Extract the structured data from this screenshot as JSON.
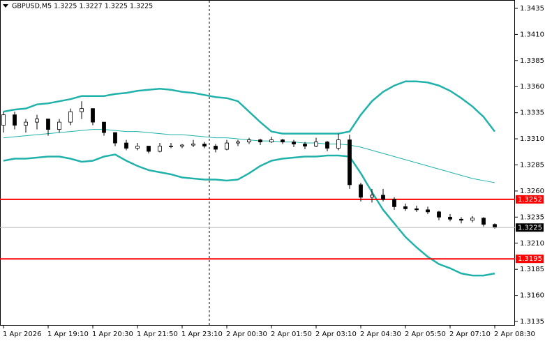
{
  "chart_data": {
    "type": "candlestick",
    "title": "GBPUSD,M5  1.3225 1.3227 1.3225 1.3225",
    "categories": [
      "1 Apr 2026",
      null,
      null,
      null,
      "1 Apr 19:10",
      null,
      null,
      null,
      "1 Apr 20:30",
      null,
      null,
      null,
      "1 Apr 21:50",
      null,
      null,
      null,
      "1 Apr 23:10",
      null,
      null,
      null,
      "2 Apr 00:30",
      null,
      null,
      null,
      "2 Apr 01:50",
      null,
      null,
      null,
      "2 Apr 03:10",
      null,
      null,
      null,
      "2 Apr 04:30",
      null,
      null,
      null,
      "2 Apr 05:50",
      null,
      null,
      null,
      "2 Apr 07:10",
      null,
      null,
      null,
      "2 Apr 08:30"
    ],
    "candles": {
      "open": [
        1.3323,
        1.3333,
        1.3323,
        1.3326,
        1.3329,
        1.3319,
        1.3326,
        1.3336,
        1.3339,
        1.3326,
        1.3316,
        1.3306,
        1.3301,
        1.3303,
        1.3298,
        1.3303,
        1.3303,
        1.3304,
        1.3305,
        1.3303,
        1.33,
        1.3306,
        1.3307,
        1.3309,
        1.3307,
        1.3309,
        1.3307,
        1.3305,
        1.3303,
        1.3307,
        1.3301,
        1.3309,
        1.3266,
        1.3254,
        1.3256,
        1.3252,
        1.3245,
        1.3243,
        1.3242,
        1.324,
        1.3235,
        1.3233,
        1.3232,
        1.3234,
        1.3228
      ],
      "high": [
        1.3336,
        1.3336,
        1.3329,
        1.3333,
        1.3329,
        1.3329,
        1.3339,
        1.3346,
        1.3339,
        1.3326,
        1.3316,
        1.3309,
        1.3306,
        1.3303,
        1.3306,
        1.3306,
        1.3305,
        1.3309,
        1.3307,
        1.3305,
        1.3309,
        1.3309,
        1.3311,
        1.331,
        1.3312,
        1.331,
        1.3309,
        1.3307,
        1.3311,
        1.3308,
        1.3315,
        1.3314,
        1.3268,
        1.3262,
        1.3262,
        1.3254,
        1.3248,
        1.3246,
        1.3245,
        1.3241,
        1.3238,
        1.3235,
        1.3236,
        1.3235,
        1.3229
      ],
      "low": [
        1.3316,
        1.3319,
        1.3316,
        1.3319,
        1.3313,
        1.3316,
        1.3323,
        1.3329,
        1.3323,
        1.3313,
        1.3303,
        1.3299,
        1.3299,
        1.3296,
        1.3297,
        1.3301,
        1.3301,
        1.3302,
        1.3301,
        1.3297,
        1.3299,
        1.3303,
        1.3305,
        1.3304,
        1.3306,
        1.3305,
        1.3302,
        1.33,
        1.3302,
        1.3298,
        1.3299,
        1.3262,
        1.325,
        1.3249,
        1.325,
        1.3242,
        1.3241,
        1.324,
        1.3238,
        1.3232,
        1.3231,
        1.3229,
        1.323,
        1.3226,
        1.3224
      ],
      "close": [
        1.3333,
        1.3323,
        1.3326,
        1.3329,
        1.3319,
        1.3326,
        1.3336,
        1.3339,
        1.3326,
        1.3316,
        1.3306,
        1.3301,
        1.3303,
        1.3298,
        1.3303,
        1.3303,
        1.3304,
        1.3305,
        1.3303,
        1.33,
        1.3306,
        1.3307,
        1.3309,
        1.3307,
        1.3309,
        1.3307,
        1.3305,
        1.3303,
        1.3307,
        1.3301,
        1.3309,
        1.3266,
        1.3254,
        1.3256,
        1.3252,
        1.3245,
        1.3243,
        1.3242,
        1.324,
        1.3235,
        1.3233,
        1.3232,
        1.3234,
        1.3228,
        1.3225
      ]
    },
    "bands": [
      {
        "color": "#20b2aa",
        "width": 2.5,
        "values": [
          1.3336,
          1.3338,
          1.3339,
          1.3343,
          1.3344,
          1.3346,
          1.3348,
          1.3351,
          1.3351,
          1.3351,
          1.3353,
          1.3354,
          1.3356,
          1.3357,
          1.3358,
          1.3357,
          1.3355,
          1.3354,
          1.3352,
          1.335,
          1.3349,
          1.3346,
          1.3336,
          1.3326,
          1.3317,
          1.3315,
          1.3315,
          1.3315,
          1.3315,
          1.3315,
          1.3315,
          1.3317,
          1.3333,
          1.3346,
          1.3355,
          1.3361,
          1.3365,
          1.3365,
          1.3364,
          1.3361,
          1.3356,
          1.3349,
          1.3341,
          1.3331,
          1.3317
        ]
      },
      {
        "color": "#20b2aa",
        "width": 1,
        "values": [
          1.3311,
          1.3312,
          1.3313,
          1.3314,
          1.3315,
          1.3316,
          1.3317,
          1.3318,
          1.3319,
          1.3319,
          1.3318,
          1.3317,
          1.3317,
          1.3316,
          1.3315,
          1.3314,
          1.3314,
          1.3313,
          1.3312,
          1.3311,
          1.3311,
          1.331,
          1.3309,
          1.3308,
          1.3308,
          1.3307,
          1.3307,
          1.3306,
          1.3306,
          1.3305,
          1.3305,
          1.3304,
          1.3302,
          1.3299,
          1.3296,
          1.3293,
          1.329,
          1.3287,
          1.3284,
          1.3281,
          1.3278,
          1.3275,
          1.3272,
          1.327,
          1.3268
        ]
      },
      {
        "color": "#20b2aa",
        "width": 2.5,
        "values": [
          1.3289,
          1.3291,
          1.3291,
          1.3292,
          1.3293,
          1.3293,
          1.3291,
          1.3288,
          1.3289,
          1.3293,
          1.3295,
          1.3289,
          1.3284,
          1.328,
          1.3278,
          1.3276,
          1.3273,
          1.3272,
          1.3271,
          1.3271,
          1.327,
          1.3271,
          1.3277,
          1.3284,
          1.3289,
          1.3291,
          1.3292,
          1.3293,
          1.3293,
          1.3294,
          1.3294,
          1.3293,
          1.3277,
          1.3259,
          1.3242,
          1.3229,
          1.3216,
          1.3206,
          1.3197,
          1.319,
          1.3186,
          1.3181,
          1.3179,
          1.3179,
          1.3181
        ]
      }
    ],
    "levels": [
      {
        "value": 1.3252,
        "color": "#ff0000"
      },
      {
        "value": 1.3195,
        "color": "#ff0000"
      }
    ],
    "last_price": 1.3225,
    "ylim": [
      1.3131,
      1.3443
    ],
    "yticks": [
      1.3435,
      {
        "value": 1.341,
        "label": "1.3410"
      },
      1.3385,
      {
        "value": 1.336,
        "label": "1.3360"
      },
      1.3335,
      {
        "value": 1.331,
        "label": "1.3310"
      },
      1.3285,
      {
        "value": 1.326,
        "label": "1.3260"
      },
      1.3235,
      {
        "value": 1.321,
        "label": "1.3210"
      },
      1.3185,
      {
        "value": 1.316,
        "label": "1.3160"
      },
      1.3135
    ]
  }
}
